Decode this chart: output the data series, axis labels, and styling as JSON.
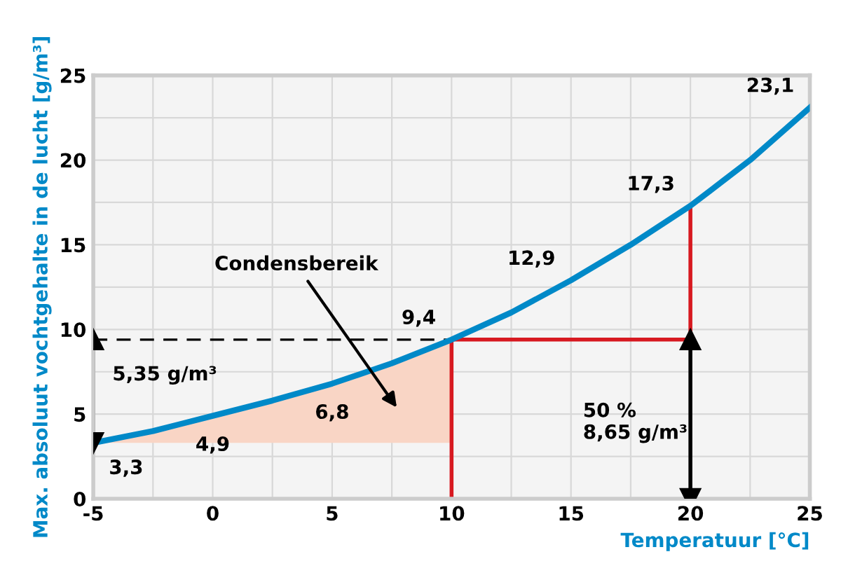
{
  "chart_data": {
    "type": "line",
    "xlabel": "Temperatuur [°C]",
    "ylabel": "Max. absoluut vochtgehalte in de lucht [g/m³]",
    "xlim": [
      -5,
      25
    ],
    "ylim": [
      0,
      25
    ],
    "xticks": [
      -5,
      {
        "value": -2.5,
        "label": null
      },
      0,
      {
        "value": 2.5,
        "label": null
      },
      5,
      {
        "value": 7.5,
        "label": null
      },
      10,
      {
        "value": 12.5,
        "label": null
      },
      15,
      {
        "value": 17.5,
        "label": null
      },
      20,
      {
        "value": 22.5,
        "label": null
      },
      25
    ],
    "yticks": [
      0,
      {
        "value": 2.5,
        "label": null
      },
      5,
      {
        "value": 7.5,
        "label": null
      },
      10,
      {
        "value": 12.5,
        "label": null
      },
      15,
      {
        "value": 17.5,
        "label": null
      },
      20,
      {
        "value": 22.5,
        "label": null
      },
      25
    ],
    "grid": true,
    "series": [
      {
        "type": "area",
        "color": "#f9d5c5",
        "x": [
          -5,
          -2.5,
          0,
          2.5,
          5,
          7.5,
          10
        ],
        "values": [
          3.3,
          4.0,
          4.9,
          5.8,
          6.8,
          8.0,
          9.4
        ]
      },
      {
        "type": "line",
        "color": "#d71920",
        "x": [
          10,
          10,
          20,
          20
        ],
        "values": [
          0,
          9.4,
          9.4,
          17.3
        ]
      },
      {
        "type": "line",
        "color": "#000000",
        "line_style": "dashed",
        "x": [
          -5,
          10
        ],
        "values": [
          9.4,
          9.4
        ]
      },
      {
        "type": "line",
        "color": "#000000",
        "marker": "triangle",
        "x": [
          -5,
          -5
        ],
        "values": [
          3.3,
          9.4
        ]
      },
      {
        "type": "line",
        "color": "#000000",
        "marker": "triangle",
        "x": [
          20,
          20
        ],
        "values": [
          0,
          9.4
        ]
      },
      {
        "color": "#0089c8",
        "x": [
          -5,
          -2.5,
          0,
          2.5,
          5,
          7.5,
          10,
          12.5,
          15,
          17.5,
          20,
          22.5,
          25
        ],
        "values": [
          3.3,
          4.0,
          4.9,
          5.8,
          6.8,
          8.0,
          9.4,
          11.0,
          12.9,
          15.0,
          17.3,
          20.0,
          23.1
        ],
        "value_labels": [
          "3,3",
          null,
          "4,9",
          null,
          "6,8",
          null,
          "9,4",
          null,
          "12,9",
          null,
          "17,3",
          null,
          "23,1"
        ]
      }
    ],
    "annotations": [
      "Condensbereik",
      "5,35 g/m³",
      "50 %\n8,65 g/m³"
    ]
  }
}
